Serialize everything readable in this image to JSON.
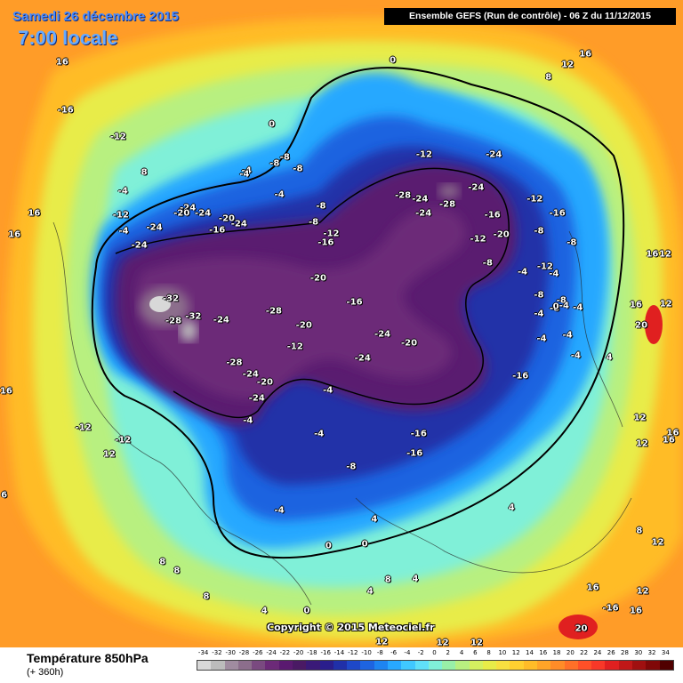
{
  "header": {
    "date_line": "Samedi 26 décembre 2015",
    "time_line": "7:00 locale",
    "run_info": "Ensemble GEFS  (Run de contrôle)  -  06 Z du 11/12/2015"
  },
  "footer": {
    "field_title": "Température 850hPa",
    "lead_time": "(+ 360h)",
    "copyright": "Copyright © 2015 Meteociel.fr"
  },
  "legend": {
    "ticks": [
      "-34",
      "-32",
      "-30",
      "-28",
      "-26",
      "-24",
      "-22",
      "-20",
      "-18",
      "-16",
      "-14",
      "-12",
      "-10",
      "-8",
      "-6",
      "-4",
      "-2",
      "0",
      "2",
      "4",
      "6",
      "8",
      "10",
      "12",
      "14",
      "16",
      "18",
      "20",
      "22",
      "24",
      "26",
      "28",
      "30",
      "32",
      "34"
    ],
    "colors": [
      "#d8d8d8",
      "#bcbcbc",
      "#a08ca0",
      "#8c6e8c",
      "#7a4a80",
      "#6c2a78",
      "#5a1a70",
      "#4a1a64",
      "#3a1a78",
      "#2a1e8c",
      "#2030a8",
      "#1e48c8",
      "#1e64e0",
      "#1e84f0",
      "#28a8ff",
      "#40c8ff",
      "#60e0f8",
      "#80f0d8",
      "#98f0a8",
      "#b8f080",
      "#d4f060",
      "#e8ec48",
      "#f8e040",
      "#ffd030",
      "#ffbc28",
      "#ffa428",
      "#ff8c28",
      "#ff7028",
      "#ff5028",
      "#f83828",
      "#e02020",
      "#c01818",
      "#a01010",
      "#800808",
      "#500000"
    ]
  },
  "temperature_labels": [
    {
      "t": "0",
      "lx": 0.575,
      "ly": 0.089
    },
    {
      "t": "12",
      "lx": 0.831,
      "ly": 0.095
    },
    {
      "t": "16",
      "lx": 0.857,
      "ly": 0.079
    },
    {
      "t": "8",
      "lx": 0.803,
      "ly": 0.113
    },
    {
      "t": "16",
      "lx": 0.091,
      "ly": 0.091
    },
    {
      "t": "-16",
      "lx": 0.096,
      "ly": 0.161
    },
    {
      "t": "-12",
      "lx": 0.173,
      "ly": 0.201
    },
    {
      "t": "0",
      "lx": 0.398,
      "ly": 0.182
    },
    {
      "t": "8",
      "lx": 0.211,
      "ly": 0.252
    },
    {
      "t": "-4",
      "lx": 0.361,
      "ly": 0.25
    },
    {
      "t": "-4",
      "lx": 0.358,
      "ly": 0.255
    },
    {
      "t": "-8",
      "lx": 0.402,
      "ly": 0.239
    },
    {
      "t": "-8",
      "lx": 0.417,
      "ly": 0.231
    },
    {
      "t": "-8",
      "lx": 0.436,
      "ly": 0.247
    },
    {
      "t": "-12",
      "lx": 0.621,
      "ly": 0.226
    },
    {
      "t": "-24",
      "lx": 0.723,
      "ly": 0.226
    },
    {
      "t": "-4",
      "lx": 0.18,
      "ly": 0.28
    },
    {
      "t": "-4",
      "lx": 0.409,
      "ly": 0.285
    },
    {
      "t": "-28",
      "lx": 0.59,
      "ly": 0.287
    },
    {
      "t": "-24",
      "lx": 0.615,
      "ly": 0.292
    },
    {
      "t": "-28",
      "lx": 0.655,
      "ly": 0.299
    },
    {
      "t": "-24",
      "lx": 0.697,
      "ly": 0.275
    },
    {
      "t": "-12",
      "lx": 0.783,
      "ly": 0.292
    },
    {
      "t": "-16",
      "lx": 0.816,
      "ly": 0.313
    },
    {
      "t": "-24",
      "lx": 0.275,
      "ly": 0.305
    },
    {
      "t": "-20",
      "lx": 0.266,
      "ly": 0.312
    },
    {
      "t": "-24",
      "lx": 0.297,
      "ly": 0.313
    },
    {
      "t": "-20",
      "lx": 0.332,
      "ly": 0.32
    },
    {
      "t": "-24",
      "lx": 0.35,
      "ly": 0.328
    },
    {
      "t": "-8",
      "lx": 0.47,
      "ly": 0.302
    },
    {
      "t": "-24",
      "lx": 0.62,
      "ly": 0.312
    },
    {
      "t": "-16",
      "lx": 0.721,
      "ly": 0.315
    },
    {
      "t": "-12",
      "lx": 0.177,
      "ly": 0.315
    },
    {
      "t": "-4",
      "lx": 0.181,
      "ly": 0.338
    },
    {
      "t": "-24",
      "lx": 0.226,
      "ly": 0.333
    },
    {
      "t": "-16",
      "lx": 0.318,
      "ly": 0.337
    },
    {
      "t": "-8",
      "lx": 0.459,
      "ly": 0.326
    },
    {
      "t": "-12",
      "lx": 0.485,
      "ly": 0.342
    },
    {
      "t": "-16",
      "lx": 0.477,
      "ly": 0.356
    },
    {
      "t": "-12",
      "lx": 0.7,
      "ly": 0.35
    },
    {
      "t": "-20",
      "lx": 0.734,
      "ly": 0.344
    },
    {
      "t": "-8",
      "lx": 0.789,
      "ly": 0.338
    },
    {
      "t": "-8",
      "lx": 0.837,
      "ly": 0.356
    },
    {
      "t": "-24",
      "lx": 0.204,
      "ly": 0.359
    },
    {
      "t": "-8",
      "lx": 0.714,
      "ly": 0.385
    },
    {
      "t": "-4",
      "lx": 0.765,
      "ly": 0.398
    },
    {
      "t": "-12",
      "lx": 0.798,
      "ly": 0.391
    },
    {
      "t": "-4",
      "lx": 0.811,
      "ly": 0.401
    },
    {
      "t": "-20",
      "lx": 0.466,
      "ly": 0.408
    },
    {
      "t": "-8",
      "lx": 0.789,
      "ly": 0.432
    },
    {
      "t": "-8",
      "lx": 0.822,
      "ly": 0.44
    },
    {
      "t": "-32",
      "lx": 0.25,
      "ly": 0.437
    },
    {
      "t": "-16",
      "lx": 0.519,
      "ly": 0.443
    },
    {
      "t": "-4",
      "lx": 0.789,
      "ly": 0.46
    },
    {
      "t": "-8",
      "lx": 0.812,
      "ly": 0.452
    },
    {
      "t": "-4",
      "lx": 0.826,
      "ly": 0.448
    },
    {
      "t": "0",
      "lx": 0.814,
      "ly": 0.449
    },
    {
      "t": "-4",
      "lx": 0.846,
      "ly": 0.45
    },
    {
      "t": "-28",
      "lx": 0.254,
      "ly": 0.47
    },
    {
      "t": "-32",
      "lx": 0.283,
      "ly": 0.464
    },
    {
      "t": "-24",
      "lx": 0.324,
      "ly": 0.469
    },
    {
      "t": "-28",
      "lx": 0.401,
      "ly": 0.456
    },
    {
      "t": "-20",
      "lx": 0.445,
      "ly": 0.477
    },
    {
      "t": "-24",
      "lx": 0.56,
      "ly": 0.49
    },
    {
      "t": "-20",
      "lx": 0.599,
      "ly": 0.502
    },
    {
      "t": "-4",
      "lx": 0.793,
      "ly": 0.496
    },
    {
      "t": "-4",
      "lx": 0.831,
      "ly": 0.491
    },
    {
      "t": "-4",
      "lx": 0.843,
      "ly": 0.521
    },
    {
      "t": "-12",
      "lx": 0.432,
      "ly": 0.508
    },
    {
      "t": "-24",
      "lx": 0.531,
      "ly": 0.525
    },
    {
      "t": "-28",
      "lx": 0.343,
      "ly": 0.531
    },
    {
      "t": "-24",
      "lx": 0.367,
      "ly": 0.548
    },
    {
      "t": "-20",
      "lx": 0.388,
      "ly": 0.56
    },
    {
      "t": "-16",
      "lx": 0.762,
      "ly": 0.551
    },
    {
      "t": "-4",
      "lx": 0.48,
      "ly": 0.572
    },
    {
      "t": "-24",
      "lx": 0.376,
      "ly": 0.583
    },
    {
      "t": "-4",
      "lx": 0.363,
      "ly": 0.616
    },
    {
      "t": "-4",
      "lx": 0.467,
      "ly": 0.635
    },
    {
      "t": "-16",
      "lx": 0.613,
      "ly": 0.635
    },
    {
      "t": "-16",
      "lx": 0.607,
      "ly": 0.664
    },
    {
      "t": "-8",
      "lx": 0.514,
      "ly": 0.684
    },
    {
      "t": "-4",
      "lx": 0.409,
      "ly": 0.747
    },
    {
      "t": "0",
      "lx": 0.481,
      "ly": 0.799
    },
    {
      "t": "0",
      "lx": 0.534,
      "ly": 0.797
    },
    {
      "t": "4",
      "lx": 0.548,
      "ly": 0.761
    },
    {
      "t": "4",
      "lx": 0.749,
      "ly": 0.744
    },
    {
      "t": "8",
      "lx": 0.568,
      "ly": 0.849
    },
    {
      "t": "8",
      "lx": 0.238,
      "ly": 0.823
    },
    {
      "t": "8",
      "lx": 0.259,
      "ly": 0.836
    },
    {
      "t": "4",
      "lx": 0.387,
      "ly": 0.895
    },
    {
      "t": "0",
      "lx": 0.449,
      "ly": 0.894
    },
    {
      "t": "4",
      "lx": 0.542,
      "ly": 0.866
    },
    {
      "t": "8",
      "lx": 0.302,
      "ly": 0.874
    },
    {
      "t": "16",
      "lx": 0.868,
      "ly": 0.861
    },
    {
      "t": "12",
      "lx": 0.941,
      "ly": 0.866
    },
    {
      "t": "-16",
      "lx": 0.894,
      "ly": 0.891
    },
    {
      "t": "20",
      "lx": 0.851,
      "ly": 0.921
    },
    {
      "t": "16",
      "lx": 0.931,
      "ly": 0.895
    },
    {
      "t": "4",
      "lx": 0.608,
      "ly": 0.848
    },
    {
      "t": "12",
      "lx": 0.559,
      "ly": 0.94
    },
    {
      "t": "12",
      "lx": 0.648,
      "ly": 0.941
    },
    {
      "t": "12",
      "lx": 0.698,
      "ly": 0.941
    },
    {
      "t": "12",
      "lx": 0.16,
      "ly": 0.665
    },
    {
      "t": "-12",
      "lx": 0.18,
      "ly": 0.645
    },
    {
      "t": "6",
      "lx": 0.006,
      "ly": 0.725
    },
    {
      "t": "16",
      "lx": 0.021,
      "ly": 0.344
    },
    {
      "t": "16",
      "lx": 0.05,
      "ly": 0.312
    },
    {
      "t": "16",
      "lx": 0.009,
      "ly": 0.573
    },
    {
      "t": "-12",
      "lx": 0.122,
      "ly": 0.626
    },
    {
      "t": "20",
      "lx": 0.939,
      "ly": 0.476
    },
    {
      "t": "16",
      "lx": 0.955,
      "ly": 0.373
    },
    {
      "t": "12",
      "lx": 0.974,
      "ly": 0.372
    },
    {
      "t": "12",
      "lx": 0.975,
      "ly": 0.445
    },
    {
      "t": "16",
      "lx": 0.931,
      "ly": 0.446
    },
    {
      "t": "12",
      "lx": 0.94,
      "ly": 0.65
    },
    {
      "t": "16",
      "lx": 0.985,
      "ly": 0.634
    },
    {
      "t": "16",
      "lx": 0.979,
      "ly": 0.644
    },
    {
      "t": "4",
      "lx": 0.892,
      "ly": 0.523
    },
    {
      "t": "12",
      "lx": 0.937,
      "ly": 0.612
    },
    {
      "t": "12",
      "lx": 0.963,
      "ly": 0.794
    },
    {
      "t": "8",
      "lx": 0.936,
      "ly": 0.777
    }
  ]
}
